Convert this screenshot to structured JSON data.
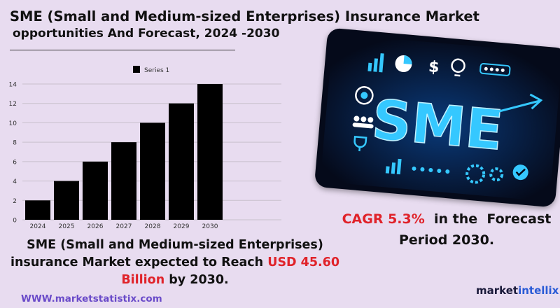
{
  "header": {
    "title_line1": "SME (Small and Medium-sized Enterprises) Insurance Market",
    "title_line2": "opportunities And Forecast, 2024 -2030"
  },
  "chart_data": {
    "type": "bar",
    "categories": [
      "2024",
      "2025",
      "2026",
      "2027",
      "2028",
      "2029",
      "2030"
    ],
    "series": [
      {
        "name": "Series 1",
        "values": [
          2,
          4,
          6,
          8,
          10,
          12,
          14
        ],
        "color": "#000000"
      }
    ],
    "yticks": [
      "0",
      "2",
      "4",
      "6",
      "8",
      "10",
      "12",
      "14"
    ],
    "ylim": [
      0,
      14
    ],
    "grid": true,
    "legend": "top-center"
  },
  "caption": {
    "part1": "SME (Small and Medium-sized Enterprises)",
    "part2": "insurance Market expected to Reach ",
    "highlight": "USD 45.60 Billion",
    "part3": " by 2030."
  },
  "cagr": {
    "highlight": "CAGR 5.3%",
    "text1": "  in the  Forecast",
    "text2": "Period  2030."
  },
  "image": {
    "text": "SME",
    "icons": [
      "bar-chart-icon",
      "pie-chart-icon",
      "dollar-icon",
      "lightbulb-icon",
      "rating-stars-icon",
      "target-icon",
      "people-icon",
      "trophy-icon",
      "gear-icon",
      "check-bubble-icon",
      "rocket-icon"
    ]
  },
  "footer": {
    "website": "WWW.marketstatistix.com",
    "brand_part1": "market",
    "brand_part2": "intellix"
  },
  "colors": {
    "background": "#e8dcf0",
    "accent_red": "#e0232a",
    "website": "#6a4bc9",
    "sme_cyan": "#35c8ff"
  }
}
